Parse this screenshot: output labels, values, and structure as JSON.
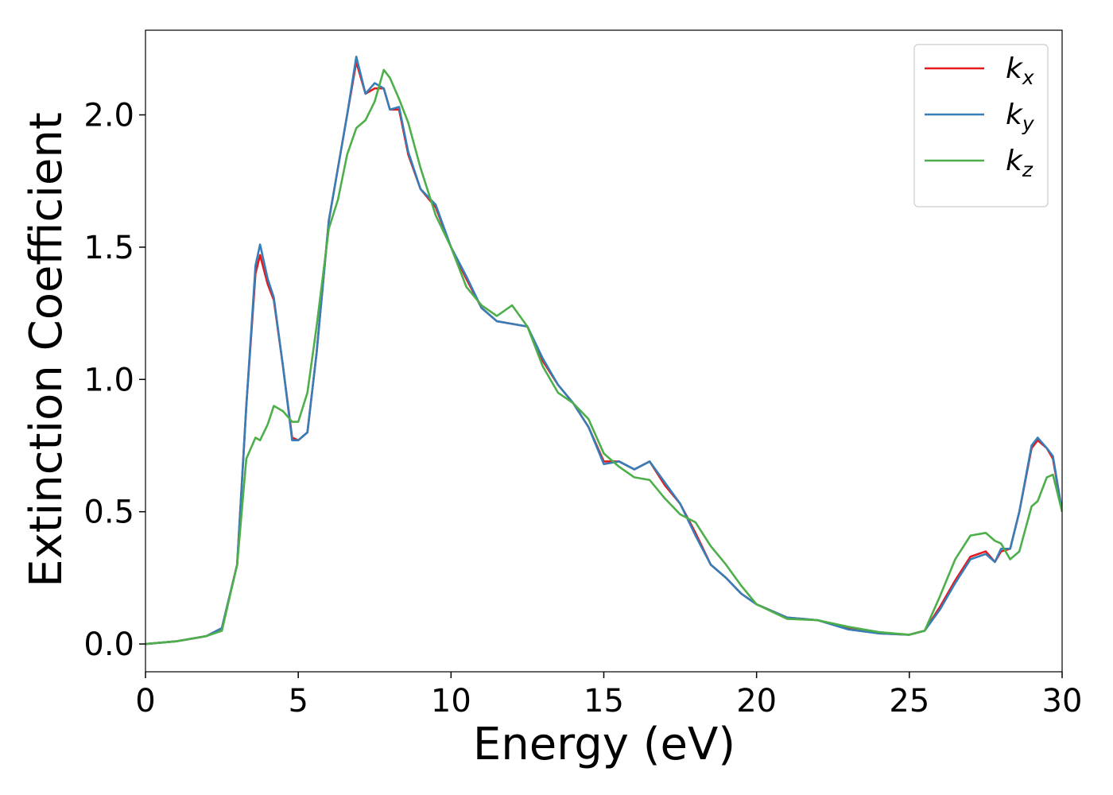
{
  "chart_data": {
    "type": "line",
    "xlabel": "Energy (eV)",
    "ylabel": "Extinction Coefficient",
    "x": [
      0,
      1,
      2,
      2.5,
      3,
      3.3,
      3.6,
      3.75,
      4,
      4.2,
      4.5,
      4.8,
      5,
      5.3,
      5.6,
      6,
      6.3,
      6.6,
      6.9,
      7.2,
      7.5,
      7.8,
      8,
      8.3,
      8.6,
      9,
      9.5,
      10,
      10.5,
      11,
      11.5,
      12,
      12.5,
      13,
      13.5,
      14,
      14.5,
      15,
      15.5,
      16,
      16.5,
      17,
      17.5,
      18,
      18.5,
      19,
      19.5,
      20,
      21,
      22,
      23,
      24,
      25,
      25.5,
      26,
      26.5,
      27,
      27.5,
      27.8,
      28,
      28.3,
      28.6,
      29,
      29.2,
      29.5,
      29.7,
      30
    ],
    "series": [
      {
        "name": "kx",
        "color": "#e41a1c",
        "values": [
          0,
          0.01,
          0.03,
          0.06,
          0.3,
          0.9,
          1.4,
          1.47,
          1.36,
          1.3,
          1.05,
          0.78,
          0.77,
          0.8,
          1.1,
          1.6,
          1.8,
          2.0,
          2.2,
          2.08,
          2.1,
          2.1,
          2.02,
          2.02,
          1.85,
          1.72,
          1.65,
          1.5,
          1.38,
          1.27,
          1.22,
          1.21,
          1.2,
          1.07,
          0.98,
          0.91,
          0.82,
          0.69,
          0.69,
          0.66,
          0.69,
          0.6,
          0.53,
          0.42,
          0.3,
          0.25,
          0.19,
          0.15,
          0.1,
          0.09,
          0.06,
          0.04,
          0.035,
          0.05,
          0.14,
          0.24,
          0.33,
          0.35,
          0.31,
          0.35,
          0.36,
          0.5,
          0.74,
          0.77,
          0.74,
          0.7,
          0.5
        ]
      },
      {
        "name": "ky",
        "color": "#377eb8",
        "values": [
          0,
          0.01,
          0.03,
          0.06,
          0.3,
          0.9,
          1.43,
          1.51,
          1.38,
          1.31,
          1.05,
          0.77,
          0.77,
          0.8,
          1.1,
          1.6,
          1.8,
          2.0,
          2.22,
          2.08,
          2.12,
          2.1,
          2.02,
          2.03,
          1.86,
          1.72,
          1.66,
          1.5,
          1.39,
          1.27,
          1.22,
          1.21,
          1.2,
          1.08,
          0.98,
          0.91,
          0.82,
          0.68,
          0.69,
          0.66,
          0.69,
          0.61,
          0.53,
          0.41,
          0.3,
          0.25,
          0.19,
          0.15,
          0.1,
          0.09,
          0.055,
          0.04,
          0.035,
          0.05,
          0.13,
          0.23,
          0.32,
          0.34,
          0.31,
          0.36,
          0.36,
          0.5,
          0.75,
          0.78,
          0.74,
          0.71,
          0.5
        ]
      },
      {
        "name": "kz",
        "color": "#4daf4a",
        "values": [
          0,
          0.01,
          0.03,
          0.05,
          0.3,
          0.7,
          0.78,
          0.77,
          0.83,
          0.9,
          0.88,
          0.84,
          0.84,
          0.95,
          1.2,
          1.57,
          1.68,
          1.85,
          1.95,
          1.98,
          2.05,
          2.17,
          2.14,
          2.06,
          1.97,
          1.8,
          1.62,
          1.5,
          1.35,
          1.28,
          1.24,
          1.28,
          1.2,
          1.05,
          0.95,
          0.91,
          0.85,
          0.72,
          0.67,
          0.63,
          0.62,
          0.55,
          0.49,
          0.46,
          0.37,
          0.3,
          0.22,
          0.15,
          0.095,
          0.09,
          0.065,
          0.045,
          0.035,
          0.05,
          0.18,
          0.32,
          0.41,
          0.42,
          0.39,
          0.38,
          0.32,
          0.35,
          0.52,
          0.54,
          0.63,
          0.64,
          0.5
        ]
      }
    ],
    "xlim": [
      0,
      30
    ],
    "xticks": [
      0,
      5,
      10,
      15,
      20,
      25,
      30
    ],
    "ylim": [
      -0.105,
      2.32
    ],
    "yticks": [
      {
        "value": 0,
        "label": "0.0"
      },
      0.5,
      {
        "value": 1,
        "label": "1.0"
      },
      1.5,
      {
        "value": 2,
        "label": "2.0"
      }
    ],
    "legend": "upper right",
    "grid": false
  }
}
